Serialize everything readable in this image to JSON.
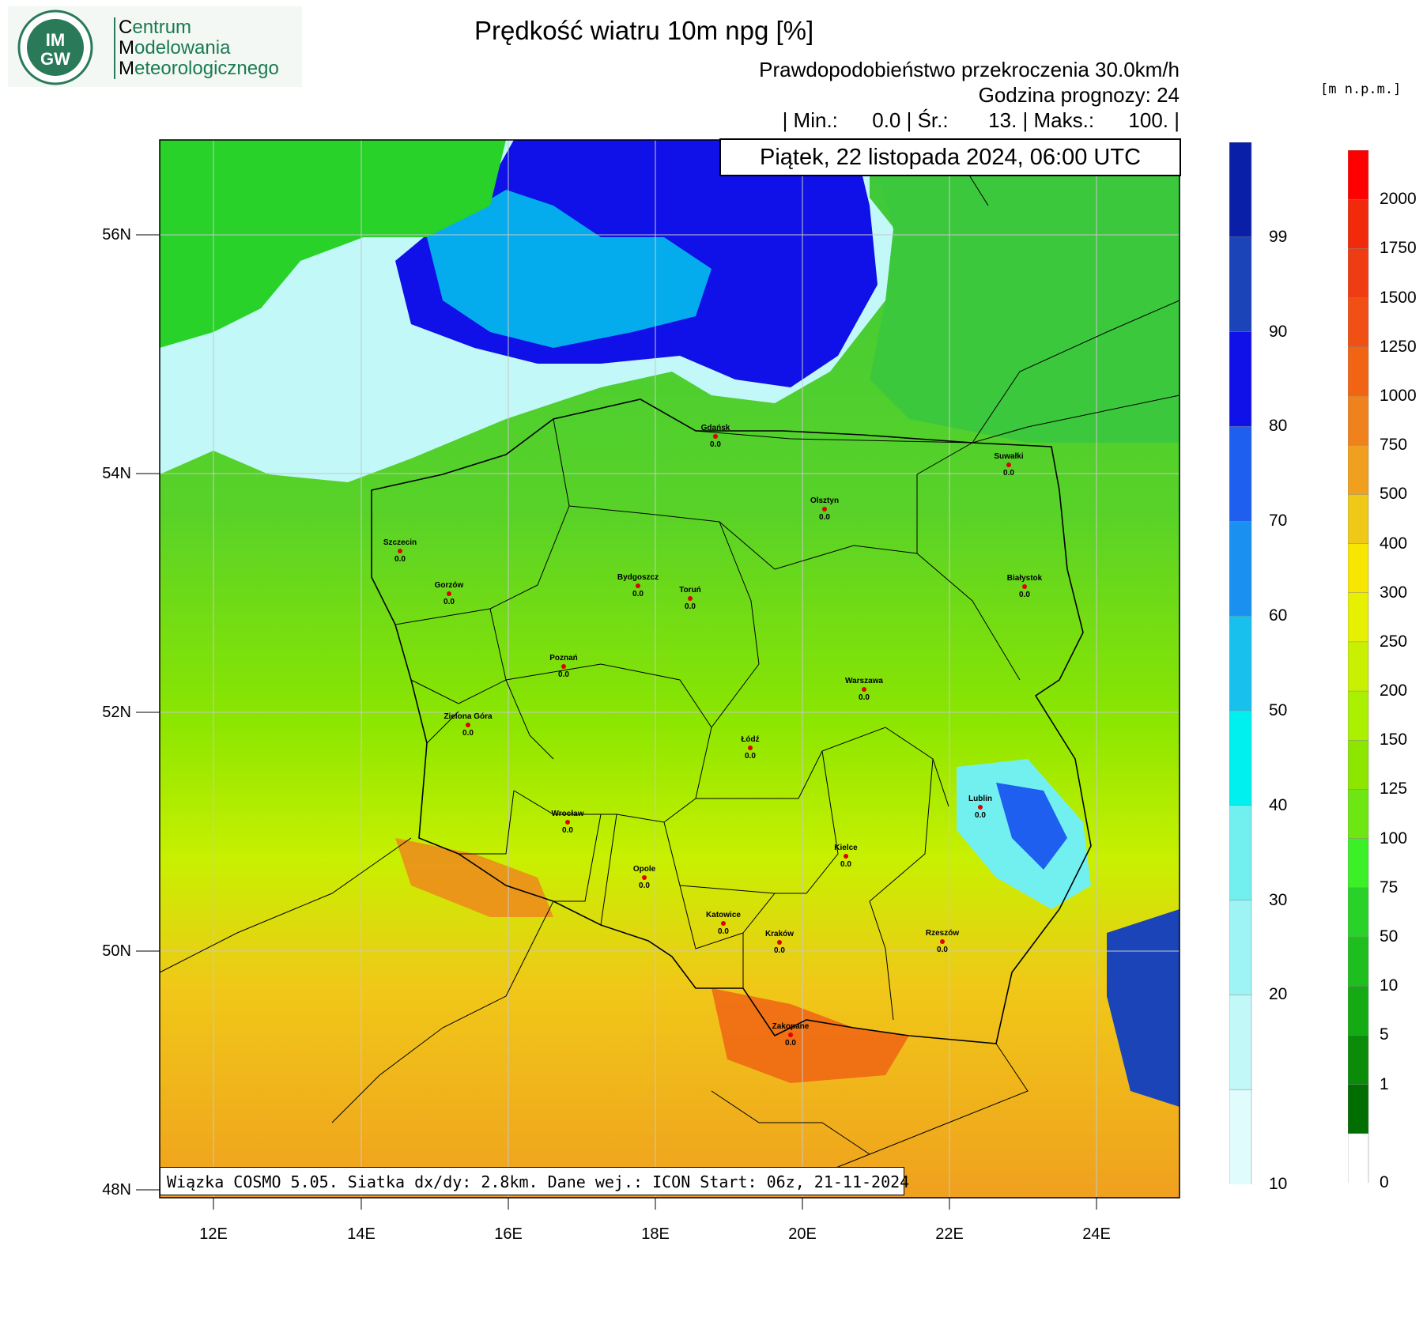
{
  "header": {
    "logo_org": "IMGW",
    "logo_line1_initial": "C",
    "logo_line1_rest": "entrum",
    "logo_line2_initial": "M",
    "logo_line2_rest": "odelowania",
    "logo_line3_initial": "M",
    "logo_line3_rest": "eteorologicznego",
    "title": "Prędkość wiatru 10m npg [%]",
    "subtitle1": "Prawdopodobieństwo przekroczenia 30.0km/h",
    "subtitle2": "Godzina prognozy: 24",
    "stats": "| Min.:      0.0 | Śr.:       13. | Maks.:      100. |",
    "date": "Piątek, 22 listopada 2024, 06:00 UTC",
    "unit": "[m n.p.m.]"
  },
  "footer": "Wiązka COSMO 5.05. Siatka dx/dy: 2.8km. Dane wej.: ICON Start: 06z, 21-11-2024",
  "axes": {
    "lat_ticks": [
      "56N",
      "54N",
      "52N",
      "50N",
      "48N"
    ],
    "lon_ticks": [
      "12E",
      "14E",
      "16E",
      "18E",
      "20E",
      "22E",
      "24E"
    ]
  },
  "prob_colorbar": {
    "labels": [
      "99",
      "90",
      "80",
      "70",
      "60",
      "50",
      "40",
      "30",
      "20",
      "10"
    ],
    "colors": [
      "#0a1fa8",
      "#1a44b8",
      "#1010e8",
      "#1e5ff0",
      "#1a90f0",
      "#18c0ee",
      "#00f0f0",
      "#72f0f0",
      "#9ef4f4",
      "#c2f8f8",
      "#e0fcfc"
    ]
  },
  "elev_colorbar": {
    "labels": [
      "2000",
      "1750",
      "1500",
      "1250",
      "1000",
      "750",
      "500",
      "400",
      "300",
      "250",
      "200",
      "150",
      "125",
      "100",
      "75",
      "50",
      "10",
      "5",
      "1",
      "0"
    ],
    "colors": [
      "#ff0000",
      "#f02a0a",
      "#f03c12",
      "#f05014",
      "#f06414",
      "#f0821e",
      "#f0a01e",
      "#f0c818",
      "#f8e600",
      "#e6f000",
      "#c8f000",
      "#aaf000",
      "#8ce600",
      "#6ee614",
      "#3cf028",
      "#28d228",
      "#1ebe1e",
      "#14aa14",
      "#0a8c0a",
      "#006e00",
      "#ffffff"
    ]
  },
  "cities": [
    {
      "name": "Gdańsk",
      "value": "0.0"
    },
    {
      "name": "Suwałki",
      "value": "0.0"
    },
    {
      "name": "Olsztyn",
      "value": "0.0"
    },
    {
      "name": "Szczecin",
      "value": "0.0"
    },
    {
      "name": "Bydgoszcz",
      "value": "0.0"
    },
    {
      "name": "Toruń",
      "value": "0.0"
    },
    {
      "name": "Białystok",
      "value": "0.0"
    },
    {
      "name": "Gorzów",
      "value": "0.0"
    },
    {
      "name": "Poznań",
      "value": "0.0"
    },
    {
      "name": "Warszawa",
      "value": "0.0"
    },
    {
      "name": "Zielona Góra",
      "value": "0.0"
    },
    {
      "name": "Łódź",
      "value": "0.0"
    },
    {
      "name": "Lublin",
      "value": "0.0"
    },
    {
      "name": "Wrocław",
      "value": "0.0"
    },
    {
      "name": "Kielce",
      "value": "0.0"
    },
    {
      "name": "Opole",
      "value": "0.0"
    },
    {
      "name": "Katowice",
      "value": "0.0"
    },
    {
      "name": "Kraków",
      "value": "0.0"
    },
    {
      "name": "Rzeszów",
      "value": "0.0"
    },
    {
      "name": "Zakopane",
      "value": "0.0"
    }
  ]
}
